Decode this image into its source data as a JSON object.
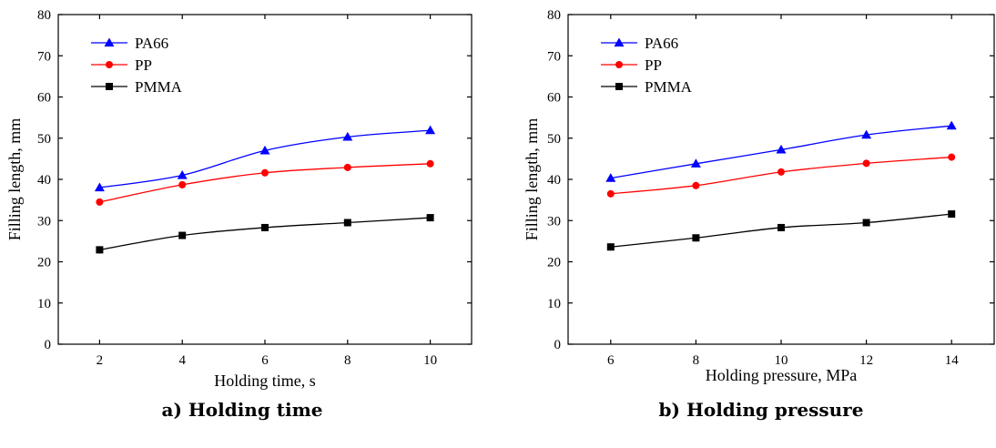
{
  "chart_data": [
    {
      "type": "line",
      "caption": "a) Holding time",
      "xlabel": "Holding time, s",
      "ylabel": "Filling length, mm",
      "x": [
        2,
        4,
        6,
        8,
        10
      ],
      "xticks": [
        2,
        4,
        6,
        8,
        10
      ],
      "xlim": [
        1,
        11
      ],
      "ylim": [
        0,
        80
      ],
      "yticks": [
        0,
        10,
        20,
        30,
        40,
        50,
        60,
        70,
        80
      ],
      "legend_position": "top-left",
      "grid": false,
      "series": [
        {
          "name": "PA66",
          "color": "#0000ff",
          "marker": "triangle",
          "values": [
            38.0,
            41.0,
            47.0,
            50.3,
            51.9
          ]
        },
        {
          "name": "PP",
          "color": "#ff0000",
          "marker": "circle",
          "values": [
            34.5,
            38.7,
            41.6,
            42.9,
            43.8
          ]
        },
        {
          "name": "PMMA",
          "color": "#000000",
          "marker": "square",
          "values": [
            22.9,
            26.4,
            28.3,
            29.5,
            30.7
          ]
        }
      ]
    },
    {
      "type": "line",
      "caption": "b) Holding pressure",
      "xlabel": "Holding pressure, MPa",
      "ylabel": "Filling length, mm",
      "x": [
        6,
        8,
        10,
        12,
        14
      ],
      "xticks": [
        6,
        8,
        10,
        12,
        14
      ],
      "xlim": [
        5,
        15
      ],
      "ylim": [
        0,
        80
      ],
      "yticks": [
        0,
        10,
        20,
        30,
        40,
        50,
        60,
        70,
        80
      ],
      "legend_position": "top-left",
      "grid": false,
      "series": [
        {
          "name": "PA66",
          "color": "#0000ff",
          "marker": "triangle",
          "values": [
            40.3,
            43.8,
            47.2,
            50.8,
            53.0
          ]
        },
        {
          "name": "PP",
          "color": "#ff0000",
          "marker": "circle",
          "values": [
            36.5,
            38.5,
            41.8,
            43.9,
            45.4
          ]
        },
        {
          "name": "PMMA",
          "color": "#000000",
          "marker": "square",
          "values": [
            23.6,
            25.8,
            28.3,
            29.5,
            31.6
          ]
        }
      ]
    }
  ]
}
